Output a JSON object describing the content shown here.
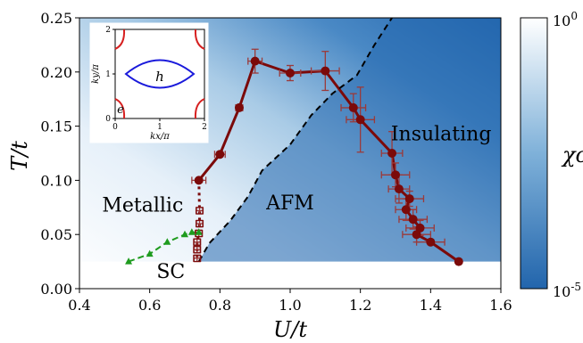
{
  "chart_data": {
    "type": "scatter",
    "xlabel": "U/t",
    "ylabel": "T/t",
    "xlim": [
      0.4,
      1.6
    ],
    "ylim": [
      0.0,
      0.25
    ],
    "xticks": [
      "0.4",
      "0.6",
      "0.8",
      "1.0",
      "1.2",
      "1.4",
      "1.6"
    ],
    "yticks": [
      "0.00",
      "0.05",
      "0.10",
      "0.15",
      "0.20",
      "0.25"
    ],
    "heatmap": {
      "variable": "χc",
      "colorbar_ticks": [
        "10^0",
        "10^-5"
      ],
      "colorscale": [
        "#ffffff",
        "#2265ac"
      ],
      "low_T_cutoff": 0.025
    },
    "region_labels": [
      {
        "text": "Metallic",
        "x": 0.58,
        "y": 0.071
      },
      {
        "text": "AFM",
        "x": 1.0,
        "y": 0.073
      },
      {
        "text": "Insulating",
        "x": 1.43,
        "y": 0.137
      },
      {
        "text": "SC",
        "x": 0.66,
        "y": 0.01
      }
    ],
    "series": [
      {
        "style": "solid-circles",
        "color": "#7b0a0a",
        "points": [
          {
            "x": 0.74,
            "y": 0.1,
            "xerr": 0.02,
            "yerr": 0.0
          },
          {
            "x": 0.8,
            "y": 0.124,
            "xerr": 0.015,
            "yerr": 0.002
          },
          {
            "x": 0.855,
            "y": 0.167,
            "xerr": 0.01,
            "yerr": 0.0
          },
          {
            "x": 0.9,
            "y": 0.21,
            "xerr": 0.02,
            "yerr": 0.011
          },
          {
            "x": 1.0,
            "y": 0.199,
            "xerr": 0.03,
            "yerr": 0.007
          },
          {
            "x": 1.1,
            "y": 0.201,
            "xerr": 0.04,
            "yerr": 0.018
          },
          {
            "x": 1.18,
            "y": 0.167,
            "xerr": 0.035,
            "yerr": 0.013
          },
          {
            "x": 1.2,
            "y": 0.156,
            "xerr": 0.04,
            "yerr": 0.03
          },
          {
            "x": 1.29,
            "y": 0.125,
            "xerr": 0.03,
            "yerr": 0.02
          },
          {
            "x": 1.3,
            "y": 0.105,
            "xerr": 0.04,
            "yerr": 0.011
          },
          {
            "x": 1.31,
            "y": 0.092,
            "xerr": 0.03,
            "yerr": 0.013
          },
          {
            "x": 1.34,
            "y": 0.083,
            "xerr": 0.04,
            "yerr": 0.007
          },
          {
            "x": 1.33,
            "y": 0.073,
            "xerr": 0.03,
            "yerr": 0.01
          },
          {
            "x": 1.35,
            "y": 0.064,
            "xerr": 0.04,
            "yerr": 0.009
          },
          {
            "x": 1.37,
            "y": 0.056,
            "xerr": 0.04,
            "yerr": 0.007
          },
          {
            "x": 1.36,
            "y": 0.05,
            "xerr": 0.04,
            "yerr": 0.007
          },
          {
            "x": 1.4,
            "y": 0.043,
            "xerr": 0.04,
            "yerr": 0.0
          },
          {
            "x": 1.48,
            "y": 0.025,
            "xerr": 0.0,
            "yerr": 0.0
          }
        ]
      },
      {
        "style": "dotted-open-squares",
        "color": "#7b0a0a",
        "points": [
          {
            "x": 0.74,
            "y": 0.1,
            "xerr": 0.0,
            "yerr": 0.0
          },
          {
            "x": 0.742,
            "y": 0.072,
            "xerr": 0.01,
            "yerr": 0.003
          },
          {
            "x": 0.742,
            "y": 0.06,
            "xerr": 0.01,
            "yerr": 0.003
          },
          {
            "x": 0.74,
            "y": 0.051,
            "xerr": 0.01,
            "yerr": 0.003
          },
          {
            "x": 0.735,
            "y": 0.043,
            "xerr": 0.01,
            "yerr": 0.003
          },
          {
            "x": 0.735,
            "y": 0.036,
            "xerr": 0.01,
            "yerr": 0.003
          },
          {
            "x": 0.735,
            "y": 0.028,
            "xerr": 0.01,
            "yerr": 0.003
          }
        ]
      },
      {
        "style": "dashed-triangles",
        "color": "#1e9b1e",
        "points": [
          {
            "x": 0.54,
            "y": 0.025
          },
          {
            "x": 0.6,
            "y": 0.032
          },
          {
            "x": 0.65,
            "y": 0.043
          },
          {
            "x": 0.7,
            "y": 0.05
          },
          {
            "x": 0.72,
            "y": 0.052
          },
          {
            "x": 0.74,
            "y": 0.052
          }
        ]
      },
      {
        "style": "dashed-line",
        "color": "#000000",
        "points": [
          {
            "x": 0.74,
            "y": 0.025
          },
          {
            "x": 0.77,
            "y": 0.042
          },
          {
            "x": 0.83,
            "y": 0.063
          },
          {
            "x": 0.88,
            "y": 0.085
          },
          {
            "x": 0.92,
            "y": 0.109
          },
          {
            "x": 1.0,
            "y": 0.133
          },
          {
            "x": 1.06,
            "y": 0.16
          },
          {
            "x": 1.12,
            "y": 0.18
          },
          {
            "x": 1.19,
            "y": 0.197
          },
          {
            "x": 1.24,
            "y": 0.225
          },
          {
            "x": 1.29,
            "y": 0.25
          }
        ]
      }
    ],
    "inset": {
      "xlabel": "kx/π",
      "ylabel": "ky/π",
      "xticks": [
        "0",
        "1",
        "2"
      ],
      "yticks": [
        "0",
        "1",
        "2"
      ],
      "labels": [
        {
          "text": "h",
          "x": 1.0,
          "y": 0.95
        },
        {
          "text": "e",
          "x": 0.12,
          "y": 0.22
        }
      ]
    }
  }
}
